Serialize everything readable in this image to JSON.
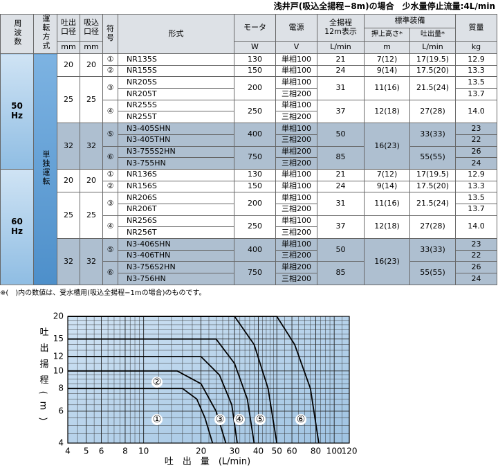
{
  "header": {
    "title": "浅井戸(吸込全揚程−8m)の場合　少水量停止流量:4L/min"
  },
  "table": {
    "head": [
      [
        "周波数",
        "運転方式",
        "吐出\n口径",
        "吸込\n口径",
        "符\n号",
        "形式",
        "モータ",
        "電源",
        "全揚程\n12m表示",
        "標準装備",
        "質量"
      ],
      [
        "押上高さ*",
        "吐出量*"
      ],
      [
        "mm",
        "mm",
        "W",
        "V",
        "L/min",
        "m",
        "L/min",
        "kg"
      ]
    ],
    "rows": [
      [
        "50\nHz",
        "単独運転",
        "20",
        "20",
        "①",
        "NR135S",
        "130",
        "単相100",
        "21",
        "7(12)",
        "17(19.5)",
        "12.9"
      ],
      [
        "②",
        "NR155S",
        "150",
        "単相100",
        "24",
        "9(14)",
        "17.5(20)",
        "13.3"
      ],
      [
        "25",
        "25",
        "③",
        "NR205S",
        "200",
        "単相100",
        "31",
        "11(16)",
        "21.5(24)",
        "13.5"
      ],
      [
        "NR205T",
        "三相200",
        "13.7"
      ],
      [
        "④",
        "NR255S",
        "250",
        "単相100",
        "37",
        "12(18)",
        "27(28)",
        "14.0"
      ],
      [
        "NR255T",
        "三相200"
      ],
      [
        "32",
        "32",
        "⑤",
        "N3-405SHN",
        "400",
        "単相100",
        "50",
        "16(23)",
        "33(33)",
        "23"
      ],
      [
        "N3-405THN",
        "三相200",
        "22"
      ],
      [
        "⑥",
        "N3-755S2HN",
        "750",
        "単相200",
        "85",
        "55(55)",
        "26"
      ],
      [
        "N3-755HN",
        "三相200",
        "24"
      ],
      [
        "60\nHz",
        "20",
        "20",
        "①",
        "NR136S",
        "130",
        "単相100",
        "21",
        "7(12)",
        "17(19.5)",
        "12.9"
      ],
      [
        "②",
        "NR156S",
        "150",
        "単相100",
        "24",
        "9(14)",
        "17.5(20)",
        "13.3"
      ],
      [
        "25",
        "25",
        "③",
        "NR206S",
        "200",
        "単相100",
        "31",
        "11(16)",
        "21.5(24)",
        "13.5"
      ],
      [
        "NR206T",
        "三相200",
        "13.7"
      ],
      [
        "④",
        "NR256S",
        "250",
        "単相100",
        "37",
        "12(18)",
        "27(28)",
        "14.0"
      ],
      [
        "NR256T",
        "三相200"
      ],
      [
        "32",
        "32",
        "⑤",
        "N3-406SHN",
        "400",
        "単相100",
        "50",
        "16(23)",
        "33(33)",
        "23"
      ],
      [
        "N3-406THN",
        "三相200",
        "22"
      ],
      [
        "⑥",
        "N3-756S2HN",
        "750",
        "単相200",
        "85",
        "55(55)",
        "26"
      ],
      [
        "N3-756HN",
        "三相200",
        "24"
      ]
    ]
  },
  "note": "※(　)内の数値は、受水槽用(吸込全揚程−1mの場合)のものです。",
  "chart_data": {
    "type": "line",
    "x_label": "吐　出　量　(L/min)",
    "y_label": "吐出揚程(m)",
    "xlog": true,
    "ylog": true,
    "xlim": [
      4,
      120
    ],
    "ylim": [
      4,
      20
    ],
    "xticks": [
      4,
      5,
      6,
      8,
      10,
      20,
      30,
      40,
      50,
      60,
      80,
      100,
      120
    ],
    "yticks": [
      4,
      6,
      8,
      10,
      12,
      15,
      20
    ],
    "xminor": [
      4.5,
      5.5,
      6.5,
      7,
      7.5,
      8.5,
      9,
      9.5,
      12,
      14,
      16,
      18,
      22,
      24,
      26,
      28,
      32,
      34,
      36,
      38,
      42,
      44,
      46,
      48,
      55,
      65,
      70,
      75,
      85,
      90,
      95,
      110
    ],
    "yminor": [
      4.5,
      5,
      5.5,
      6.5,
      7,
      7.5,
      8.5,
      9,
      9.5,
      11,
      13,
      14,
      16,
      17,
      18,
      19
    ],
    "grid": true,
    "series": [
      {
        "name": "①",
        "color": "#000000",
        "x": [
          4,
          16,
          19,
          21,
          23
        ],
        "values": [
          8,
          8,
          7,
          5.5,
          4
        ]
      },
      {
        "name": "②",
        "color": "#000000",
        "x": [
          4,
          15,
          20,
          24,
          27
        ],
        "values": [
          10,
          10,
          8.5,
          6,
          4
        ]
      },
      {
        "name": "③",
        "color": "#000000",
        "x": [
          4,
          20,
          25,
          29,
          31
        ],
        "values": [
          12,
          12,
          9.5,
          6.5,
          4
        ]
      },
      {
        "name": "④",
        "color": "#000000",
        "x": [
          4,
          24,
          30,
          35,
          38
        ],
        "values": [
          15,
          15,
          11,
          7,
          4
        ]
      },
      {
        "name": "⑤",
        "color": "#000000",
        "x": [
          4,
          30,
          38,
          45,
          50
        ],
        "values": [
          20,
          20,
          14,
          8,
          4
        ]
      },
      {
        "name": "⑥",
        "color": "#000000",
        "x": [
          4,
          50,
          62,
          75,
          83
        ],
        "values": [
          20,
          20,
          14,
          8,
          4
        ]
      }
    ]
  }
}
